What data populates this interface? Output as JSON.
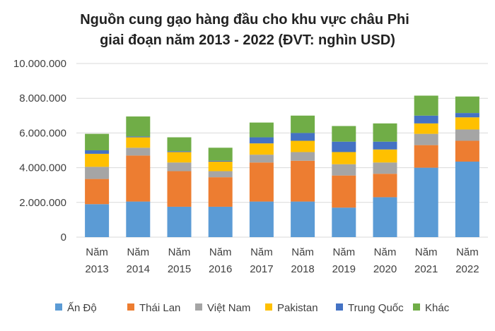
{
  "chart_data": {
    "type": "bar",
    "stacked": true,
    "title_lines": [
      "Nguồn cung gạo hàng đầu cho khu vực châu Phi",
      "giai đoạn năm 2013 - 2022 (ĐVT: nghìn USD)"
    ],
    "categories": [
      [
        "Năm",
        "2013"
      ],
      [
        "Năm",
        "2014"
      ],
      [
        "Năm",
        "2015"
      ],
      [
        "Năm",
        "2016"
      ],
      [
        "Năm",
        "2017"
      ],
      [
        "Năm",
        "2018"
      ],
      [
        "Năm",
        "2019"
      ],
      [
        "Năm",
        "2020"
      ],
      [
        "Năm",
        "2021"
      ],
      [
        "Năm",
        "2022"
      ]
    ],
    "ylim": [
      0,
      10000000
    ],
    "yticks": [
      0,
      2000000,
      4000000,
      6000000,
      8000000,
      10000000
    ],
    "ytick_labels": [
      "0",
      "2.000.000",
      "4.000.000",
      "6.000.000",
      "8.000.000",
      "10.000.000"
    ],
    "grid": true,
    "legend_position": "bottom",
    "series": [
      {
        "name": "Ấn Độ",
        "color": "#5b9bd5",
        "values": [
          1900000,
          2050000,
          1750000,
          1750000,
          2050000,
          2050000,
          1700000,
          2300000,
          4000000,
          4350000
        ]
      },
      {
        "name": "Thái Lan",
        "color": "#ed7d31",
        "values": [
          1450000,
          2650000,
          2050000,
          1700000,
          2250000,
          2350000,
          1850000,
          1350000,
          1300000,
          1200000
        ]
      },
      {
        "name": "Việt Nam",
        "color": "#a5a5a5",
        "values": [
          700000,
          450000,
          500000,
          350000,
          450000,
          500000,
          650000,
          650000,
          650000,
          650000
        ]
      },
      {
        "name": "Pakistan",
        "color": "#ffc000",
        "values": [
          750000,
          600000,
          600000,
          550000,
          650000,
          650000,
          700000,
          750000,
          600000,
          700000
        ]
      },
      {
        "name": "Trung Quốc",
        "color": "#4472c4",
        "values": [
          200000,
          50000,
          50000,
          50000,
          350000,
          450000,
          600000,
          450000,
          450000,
          250000
        ]
      },
      {
        "name": "Khác",
        "color": "#70ad47",
        "values": [
          950000,
          1150000,
          800000,
          750000,
          850000,
          1000000,
          900000,
          1050000,
          1150000,
          950000
        ]
      }
    ]
  }
}
